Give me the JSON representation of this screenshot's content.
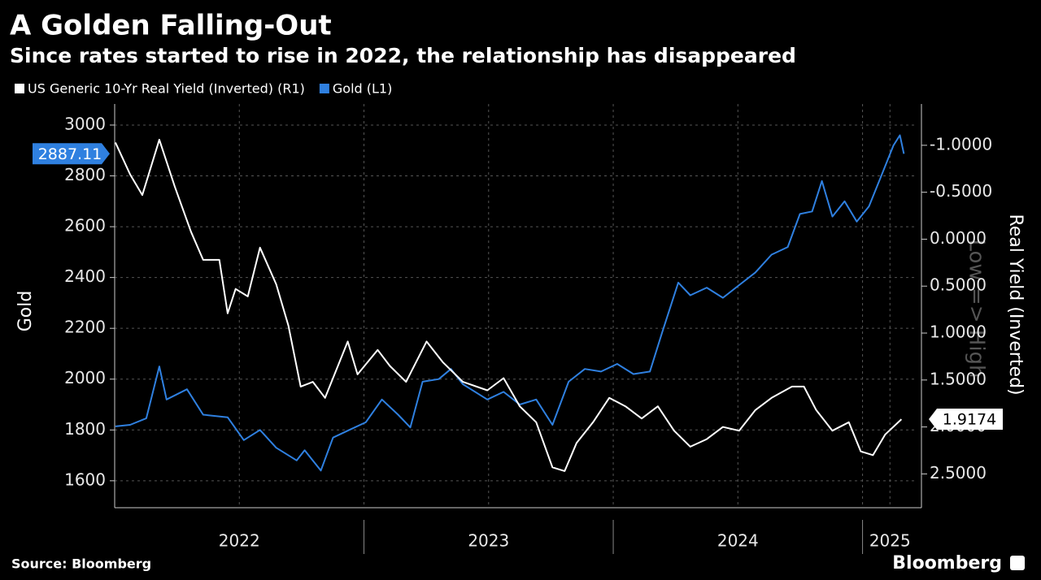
{
  "chart_data": {
    "type": "line",
    "title": "A Golden Falling-Out",
    "subtitle": "Since rates started to rise in 2022, the relationship has disappeared",
    "ylabel": "Gold",
    "y2label": "Real Yield (Inverted)",
    "y2note": "Low => High",
    "source": "Source: Bloomberg",
    "brand": "Bloomberg",
    "xlim": [
      2022,
      2025.22
    ],
    "xticks": [
      {
        "value": 2022.5,
        "label": "2022"
      },
      {
        "value": 2023.5,
        "label": "2023"
      },
      {
        "value": 2024.5,
        "label": "2024"
      },
      {
        "value": 2025.11,
        "label": "2025"
      }
    ],
    "ylim": [
      1494,
      3083
    ],
    "yticks": [
      1600,
      1800,
      2000,
      2200,
      2400,
      2600,
      2800,
      3000
    ],
    "y2lim": [
      -1.44,
      2.86
    ],
    "y2_inverted": true,
    "y2ticks": [
      {
        "value": -1.0,
        "label": "-1.0000"
      },
      {
        "value": -0.5,
        "label": "-0.5000"
      },
      {
        "value": 0,
        "label": "0.0000"
      },
      {
        "value": 0.5,
        "label": "0.5000"
      },
      {
        "value": 1.0,
        "label": "1.0000"
      },
      {
        "value": 1.5,
        "label": "1.5000"
      },
      {
        "value": 2.0,
        "label": "2.0000"
      },
      {
        "value": 2.5,
        "label": "2.5000"
      }
    ],
    "grid": true,
    "series": [
      {
        "name": "US Generic 10-Yr Real Yield (Inverted) (R1)",
        "color": "#ffffff",
        "axis": "y2",
        "x": [
          2022.003,
          2022.062,
          2022.111,
          2022.179,
          2022.241,
          2022.306,
          2022.355,
          2022.42,
          2022.453,
          2022.485,
          2022.534,
          2022.583,
          2022.648,
          2022.697,
          2022.746,
          2022.795,
          2022.844,
          2022.935,
          2022.974,
          2023.055,
          2023.104,
          2023.169,
          2023.251,
          2023.316,
          2023.397,
          2023.495,
          2023.56,
          2023.625,
          2023.691,
          2023.756,
          2023.805,
          2023.853,
          2023.919,
          2023.984,
          2024.049,
          2024.114,
          2024.179,
          2024.244,
          2024.309,
          2024.375,
          2024.44,
          2024.505,
          2024.57,
          2024.635,
          2024.717,
          2024.765,
          2024.814,
          2024.879,
          2024.945,
          2024.993,
          2025.042,
          2025.091,
          2025.156
        ],
        "values": [
          -1.03,
          -0.69,
          -0.47,
          -1.06,
          -0.56,
          -0.08,
          0.22,
          0.22,
          0.79,
          0.53,
          0.61,
          0.09,
          0.48,
          0.92,
          1.57,
          1.52,
          1.69,
          1.09,
          1.44,
          1.18,
          1.35,
          1.52,
          1.09,
          1.31,
          1.52,
          1.61,
          1.48,
          1.78,
          1.95,
          2.43,
          2.47,
          2.17,
          1.95,
          1.69,
          1.78,
          1.91,
          1.78,
          2.04,
          2.21,
          2.13,
          2.0,
          2.04,
          1.82,
          1.69,
          1.57,
          1.57,
          1.82,
          2.04,
          1.95,
          2.26,
          2.3,
          2.08,
          1.9174
        ]
      },
      {
        "name": "Gold (L1)",
        "color": "#2f80e0",
        "axis": "y",
        "x": [
          2022.003,
          2022.062,
          2022.127,
          2022.179,
          2022.208,
          2022.29,
          2022.355,
          2022.453,
          2022.518,
          2022.583,
          2022.648,
          2022.73,
          2022.762,
          2022.827,
          2022.876,
          2022.941,
          2023.007,
          2023.072,
          2023.137,
          2023.186,
          2023.235,
          2023.3,
          2023.349,
          2023.397,
          2023.495,
          2023.56,
          2023.625,
          2023.691,
          2023.756,
          2023.821,
          2023.886,
          2023.951,
          2024.016,
          2024.081,
          2024.147,
          2024.195,
          2024.261,
          2024.309,
          2024.375,
          2024.44,
          2024.505,
          2024.57,
          2024.635,
          2024.7,
          2024.749,
          2024.798,
          2024.837,
          2024.879,
          2024.928,
          2024.977,
          2025.026,
          2025.075,
          2025.124,
          2025.15,
          2025.166
        ],
        "values": [
          1814,
          1820,
          1846,
          2050,
          1920,
          1960,
          1860,
          1850,
          1760,
          1800,
          1730,
          1680,
          1720,
          1640,
          1770,
          1800,
          1830,
          1920,
          1860,
          1810,
          1990,
          2000,
          2040,
          1980,
          1920,
          1950,
          1900,
          1920,
          1820,
          1990,
          2040,
          2030,
          2060,
          2020,
          2030,
          2180,
          2380,
          2330,
          2360,
          2320,
          2370,
          2420,
          2490,
          2520,
          2650,
          2660,
          2780,
          2640,
          2700,
          2620,
          2680,
          2800,
          2920,
          2960,
          2887.11
        ]
      }
    ]
  }
}
